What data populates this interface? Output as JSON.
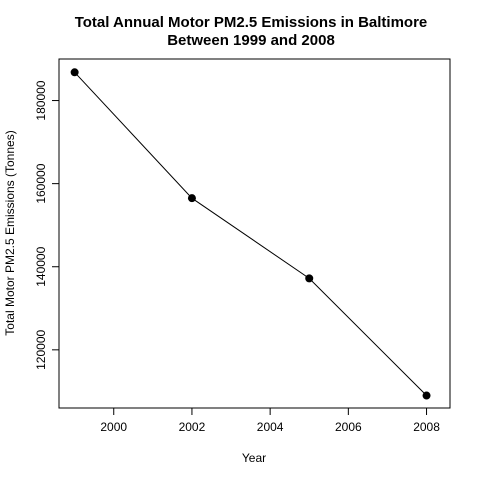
{
  "chart_data": {
    "type": "line",
    "title_lines": [
      "Total Annual Motor PM2.5 Emissions in Baltimore",
      "Between 1999 and 2008"
    ],
    "xlabel": "Year",
    "ylabel": "Total Motor PM2.5 Emissions (Tonnes)",
    "x": [
      1999,
      2002,
      2005,
      2008
    ],
    "values": [
      186800,
      156500,
      137200,
      109000
    ],
    "xlim": [
      1998.6,
      2008.6
    ],
    "ylim": [
      106000,
      190000
    ],
    "xticks": [
      2000,
      2002,
      2004,
      2006,
      2008
    ],
    "yticks": [
      120000,
      140000,
      160000,
      180000
    ],
    "marker": "filled-circle",
    "grid": false,
    "legend": "none"
  }
}
